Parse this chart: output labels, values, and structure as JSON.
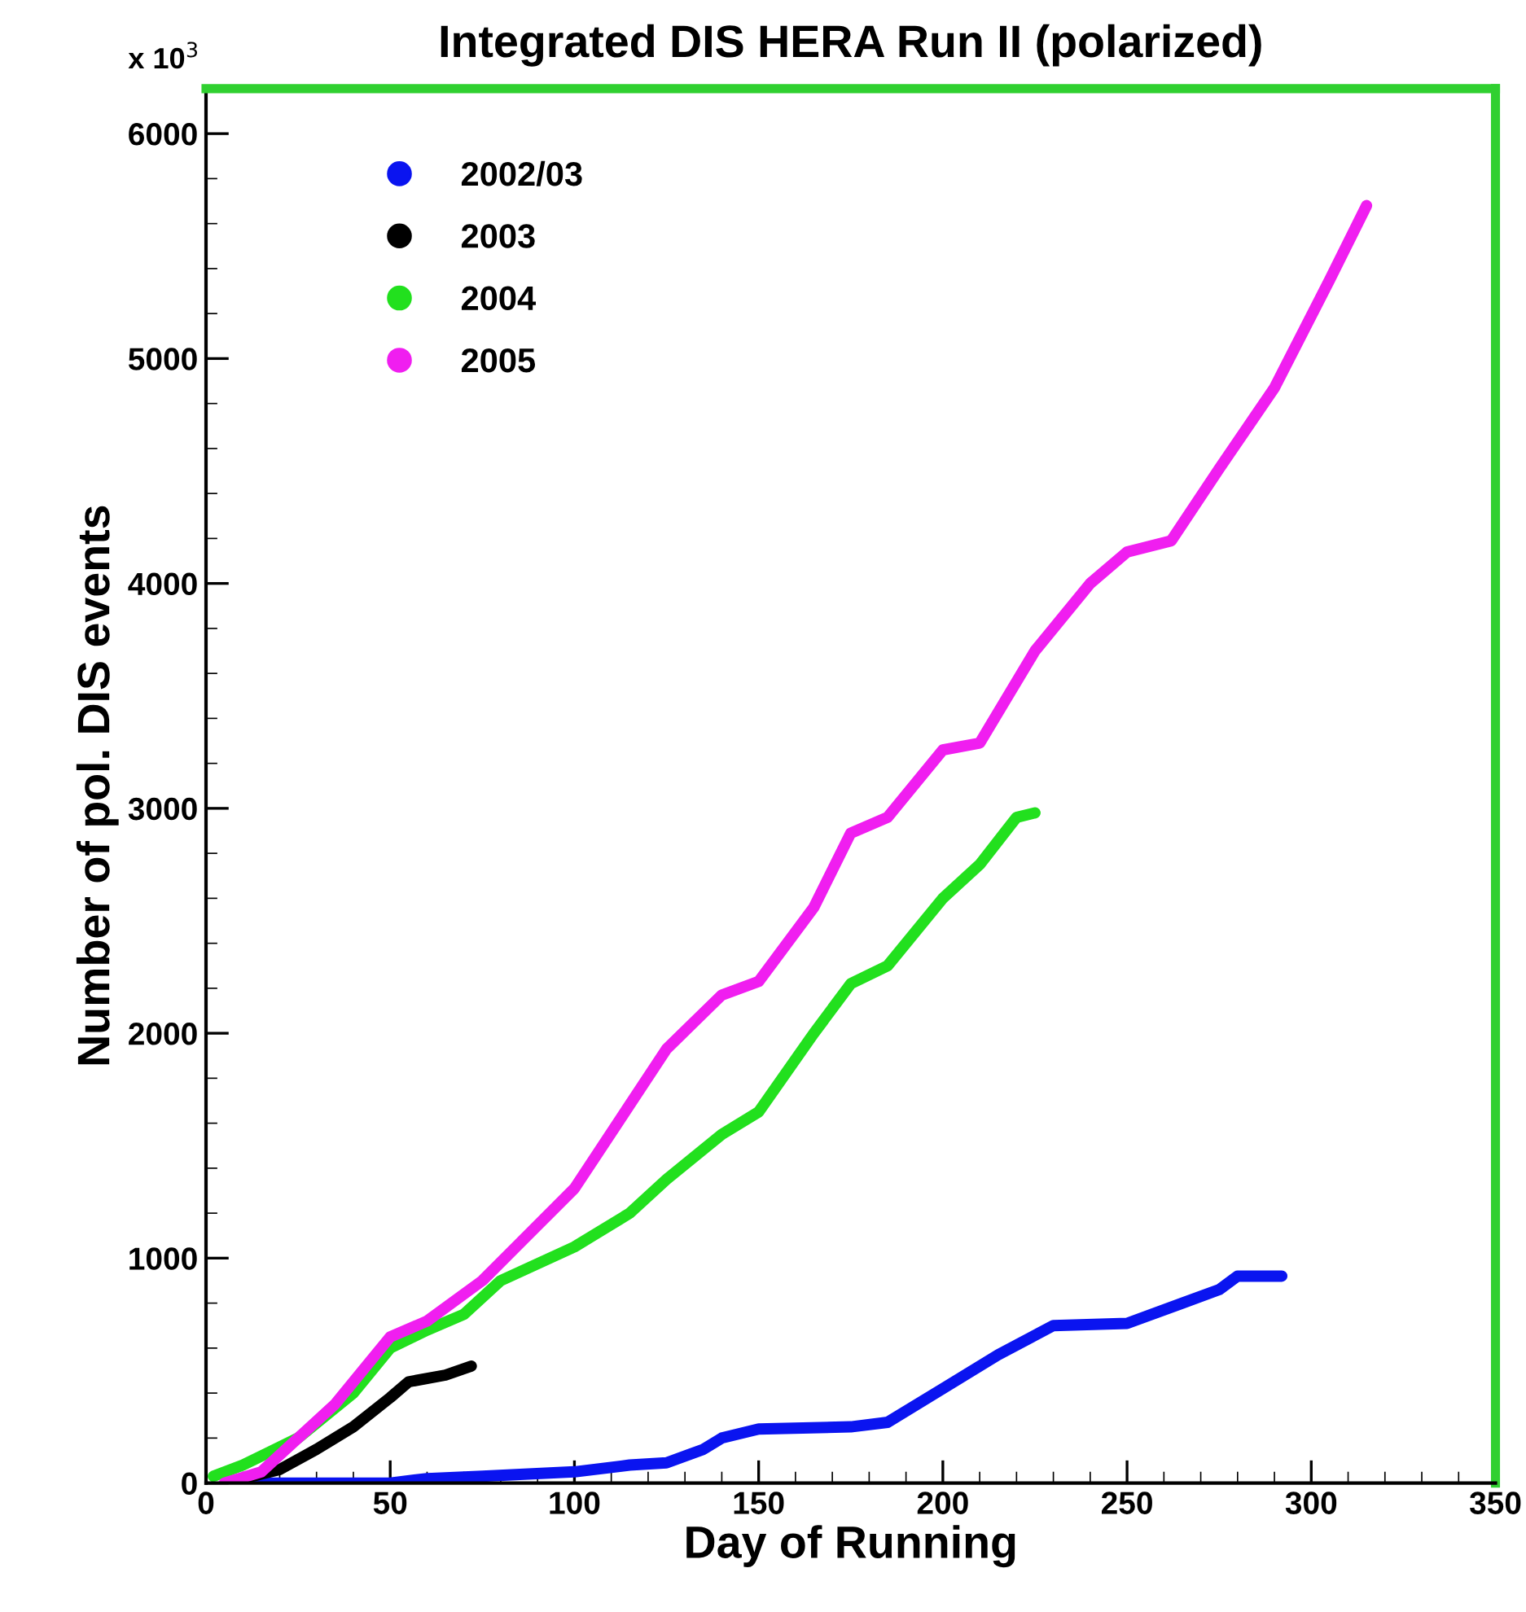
{
  "chart_data": {
    "type": "line",
    "title": "Integrated DIS HERA Run II (polarized)",
    "xlabel": "Day of Running",
    "ylabel": "Number of pol. DIS events",
    "annotations": [
      "x 10$^{3}$"
    ],
    "xlim": [
      0,
      350
    ],
    "xticks": [
      0,
      50,
      100,
      150,
      200,
      250,
      300,
      350
    ],
    "ylim": [
      0,
      6200
    ],
    "yticks": [
      0,
      1000,
      2000,
      3000,
      4000,
      5000,
      6000
    ],
    "grid": false,
    "legend": "top left",
    "marker": "none",
    "line_style": "solid",
    "series": [
      {
        "name": "2002/03",
        "color": "#0a14f0",
        "x": [
          10,
          30,
          50,
          60,
          75,
          100,
          115,
          125,
          135,
          140,
          150,
          175,
          185,
          200,
          215,
          230,
          250,
          265,
          275,
          280,
          292
        ],
        "values": [
          0,
          0,
          0,
          20,
          30,
          50,
          80,
          90,
          150,
          200,
          240,
          250,
          270,
          420,
          570,
          700,
          710,
          800,
          860,
          920,
          920
        ]
      },
      {
        "name": "2003",
        "color": "#000000",
        "x": [
          10,
          20,
          30,
          40,
          50,
          55,
          65,
          72
        ],
        "values": [
          20,
          60,
          150,
          250,
          380,
          450,
          480,
          520
        ]
      },
      {
        "name": "2004",
        "color": "#22e01e",
        "x": [
          2,
          10,
          25,
          40,
          50,
          60,
          70,
          80,
          100,
          115,
          125,
          140,
          150,
          165,
          175,
          185,
          200,
          210,
          220,
          225
        ],
        "values": [
          30,
          80,
          200,
          400,
          600,
          680,
          750,
          900,
          1050,
          1200,
          1350,
          1550,
          1650,
          2000,
          2220,
          2300,
          2600,
          2750,
          2960,
          2980
        ]
      },
      {
        "name": "2005",
        "color": "#f01ef0",
        "x": [
          5,
          15,
          25,
          35,
          45,
          50,
          60,
          75,
          100,
          125,
          140,
          150,
          165,
          175,
          185,
          200,
          210,
          225,
          240,
          250,
          262,
          275,
          290,
          305,
          315
        ],
        "values": [
          0,
          50,
          200,
          350,
          550,
          650,
          720,
          900,
          1310,
          1930,
          2170,
          2230,
          2560,
          2890,
          2960,
          3260,
          3290,
          3700,
          4000,
          4140,
          4190,
          4510,
          4870,
          5350,
          5680
        ]
      }
    ]
  }
}
